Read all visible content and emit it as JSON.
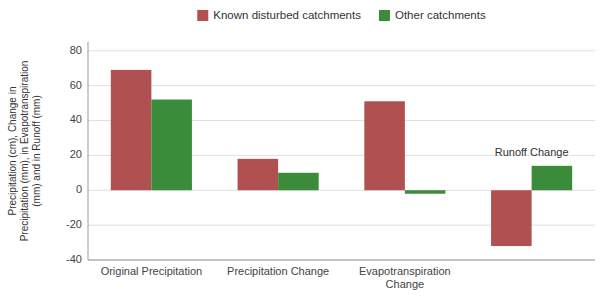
{
  "chart_data": {
    "type": "bar",
    "categories": [
      "Original Precipitation",
      "Precipitation Change",
      "Evapotranspiration Change",
      null
    ],
    "series": [
      {
        "name": "Known disturbed catchments",
        "color": "#b05050",
        "values": [
          69,
          18,
          51,
          -32
        ]
      },
      {
        "name": "Other catchments",
        "color": "#3a8c3a",
        "values": [
          52,
          10,
          -2,
          14
        ]
      }
    ],
    "ylabel": "Precipitation (cm), Change in\nPrecipitation (mm), in Evapotranspiration\n(mm) and in Runoff (mm)",
    "ylim": [
      -40,
      85
    ],
    "yticks": [
      -40,
      -20,
      0,
      20,
      40,
      60,
      80
    ],
    "annotations": [
      {
        "text": "Runoff Change",
        "x": 3,
        "y": 18
      }
    ],
    "grid": true,
    "legend": "top"
  }
}
